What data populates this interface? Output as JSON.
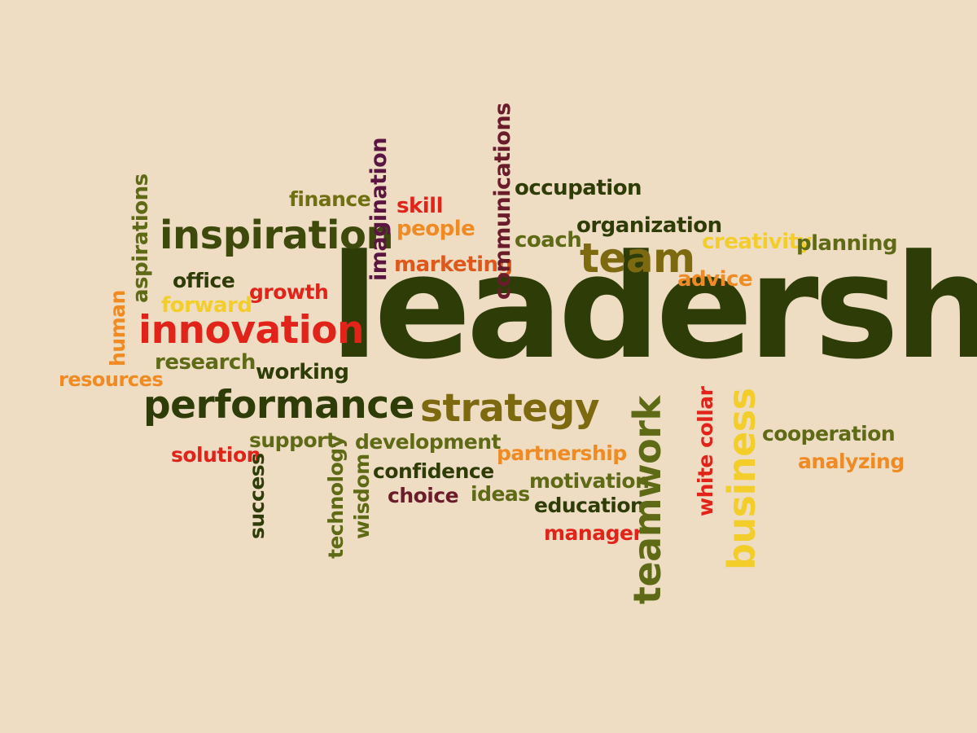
{
  "colors": {
    "background": "#EEDCC3",
    "darkgreen": "#2E3D07",
    "olive": "#5E6A16",
    "khaki": "#7D6A10",
    "red": "#E2231A",
    "orange": "#F08A22",
    "yellow": "#F3CE2A",
    "maroon": "#6A1C2A",
    "purple": "#5A1640"
  },
  "words": {
    "leadership": "leadership",
    "inspiration": "inspiration",
    "innovation": "innovation",
    "performance": "performance",
    "strategy": "strategy",
    "team": "team",
    "teamwork": "teamwork",
    "business": "business",
    "finance": "finance",
    "skill": "skill",
    "people": "people",
    "marketing": "marketing",
    "imagination": "imagination",
    "communications": "communications",
    "occupation": "occupation",
    "organization": "organization",
    "coach": "coach",
    "creativity": "creativity",
    "planning": "planning",
    "advice": "advice",
    "aspirations": "aspirations",
    "office": "office",
    "growth": "growth",
    "forward": "forward",
    "human": "human",
    "resources": "resources",
    "research": "research",
    "working": "working",
    "solution": "solution",
    "support": "support",
    "success": "success",
    "technology": "technology",
    "wisdom": "wisdom",
    "development": "development",
    "confidence": "confidence",
    "choice": "choice",
    "ideas": "ideas",
    "partnership": "partnership",
    "motivation": "motivation",
    "education": "education",
    "manager": "manager",
    "white_collar": "white collar",
    "cooperation": "cooperation",
    "analyzing": "analyzing"
  }
}
